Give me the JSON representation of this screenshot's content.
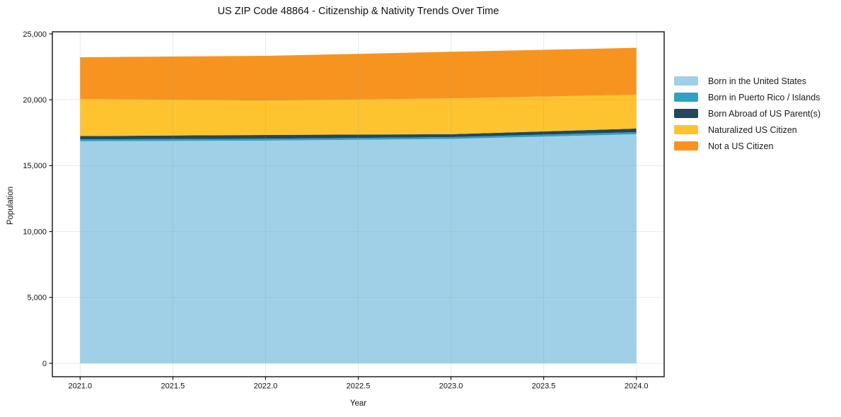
{
  "chart_data": {
    "type": "area",
    "stacked": true,
    "title": "US ZIP Code 48864 - Citizenship & Nativity Trends Over Time",
    "xlabel": "Year",
    "ylabel": "Population",
    "x": [
      2021.0,
      2022.0,
      2023.0,
      2024.0
    ],
    "series": [
      {
        "name": "Born in the United States",
        "color": "#9fd0e7",
        "values": [
          16850,
          16900,
          17025,
          17385
        ]
      },
      {
        "name": "Born in Puerto Rico / Islands",
        "color": "#33a0c1",
        "values": [
          145,
          145,
          145,
          160
        ]
      },
      {
        "name": "Born Abroad of US Parent(s)",
        "color": "#24475c",
        "values": [
          250,
          285,
          215,
          270
        ]
      },
      {
        "name": "Naturalized US Citizen",
        "color": "#fdc42f",
        "values": [
          2820,
          2610,
          2720,
          2575
        ]
      },
      {
        "name": "Not a US Citizen",
        "color": "#f7941f",
        "values": [
          3165,
          3395,
          3540,
          3555
        ]
      }
    ],
    "xlim": [
      2020.85,
      2024.15
    ],
    "ylim": [
      -1020,
      25160
    ],
    "xticks": [
      {
        "v": 2021.0,
        "label": "2021.0"
      },
      {
        "v": 2021.5,
        "label": "2021.5"
      },
      {
        "v": 2022.0,
        "label": "2022.0"
      },
      {
        "v": 2022.5,
        "label": "2022.5"
      },
      {
        "v": 2023.0,
        "label": "2023.0"
      },
      {
        "v": 2023.5,
        "label": "2023.5"
      },
      {
        "v": 2024.0,
        "label": "2024.0"
      }
    ],
    "yticks": [
      {
        "v": 0,
        "label": "0"
      },
      {
        "v": 5000,
        "label": "5,000"
      },
      {
        "v": 10000,
        "label": "10,000"
      },
      {
        "v": 15000,
        "label": "15,000"
      },
      {
        "v": 20000,
        "label": "20,000"
      },
      {
        "v": 25000,
        "label": "25,000"
      }
    ],
    "grid": true,
    "legend_position": "outside-right",
    "colors": {
      "spine": "#111111",
      "grid": "#999999",
      "tick_text": "#111111"
    }
  }
}
